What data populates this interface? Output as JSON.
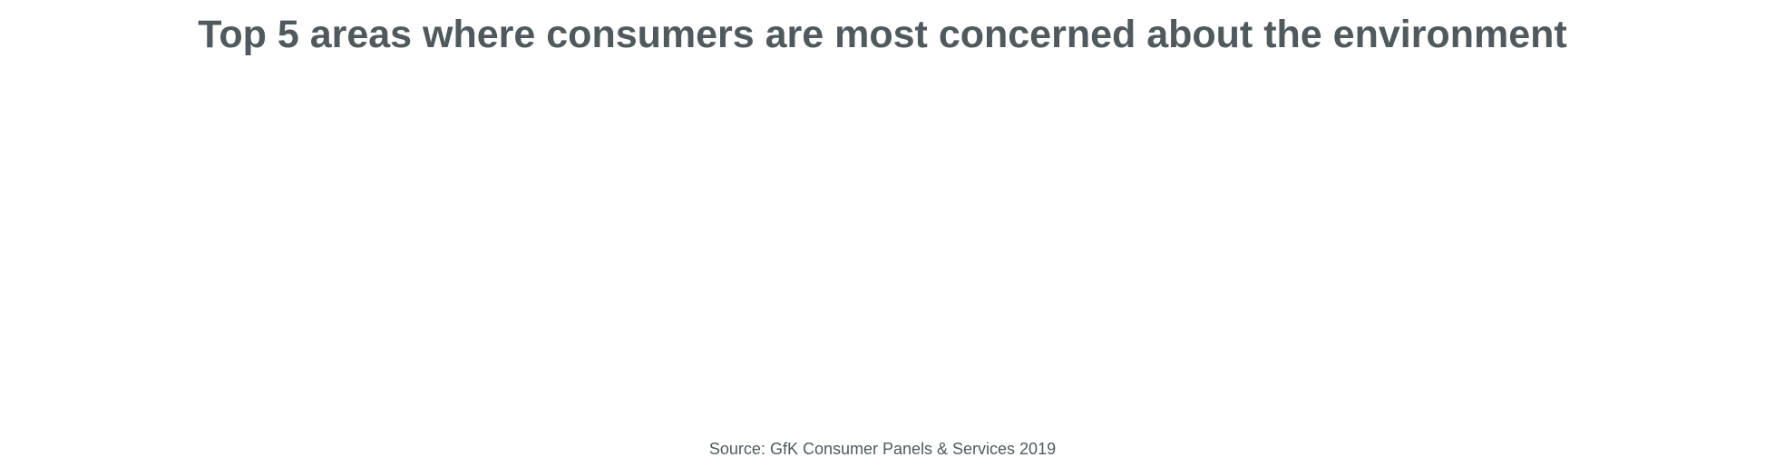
{
  "colors": {
    "title": "#4f5a5e",
    "source": "#4f5a5e",
    "background": "#ffffff"
  },
  "chart_data": {
    "type": "bar",
    "title": "Top 5 areas where consumers are most concerned about the environment",
    "source": "Source: GfK Consumer Panels & Services 2019",
    "categories": [],
    "values": []
  }
}
